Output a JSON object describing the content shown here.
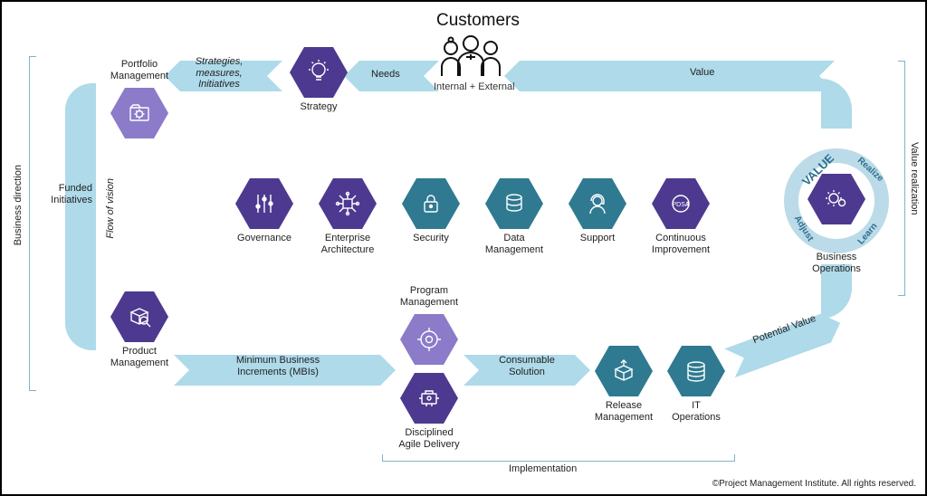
{
  "type": "flowchart",
  "background_color": "#ffffff",
  "arrow_band_color": "#aedaea",
  "value_ring_color": "#bcdbe8",
  "value_ring_text_color": "#2b6f8f",
  "border_color": "#000000",
  "label_fontsize": 11,
  "title_fontsize": 19,
  "copyright": "©Project Management Institute. All rights reserved.",
  "customers": {
    "title": "Customers",
    "subtitle": "Internal + External"
  },
  "hex_palette": {
    "purple": "#4d398f",
    "light_purple": "#8b7bc9",
    "teal": "#2f7a91",
    "dark_teal": "#236073"
  },
  "nodes": {
    "strategy": {
      "label": "Strategy",
      "color": "#4d398f"
    },
    "portfolio_management": {
      "label": "Portfolio\nManagement",
      "color": "#8b7bc9"
    },
    "product_management": {
      "label": "Product\nManagement",
      "color": "#4d398f"
    },
    "program_management": {
      "label": "Program\nManagement",
      "color": "#8b7bc9"
    },
    "disciplined_agile": {
      "label": "Disciplined\nAgile Delivery",
      "color": "#4d398f"
    },
    "release_management": {
      "label": "Release\nManagement",
      "color": "#2f7a91"
    },
    "it_operations": {
      "label": "IT\nOperations",
      "color": "#2f7a91"
    },
    "business_operations": {
      "label": "Business\nOperations",
      "color": "#4d398f"
    },
    "governance": {
      "label": "Governance",
      "color": "#4d398f"
    },
    "enterprise_arch": {
      "label": "Enterprise\nArchitecture",
      "color": "#4d398f"
    },
    "security": {
      "label": "Security",
      "color": "#2f7a91"
    },
    "data_management": {
      "label": "Data\nManagement",
      "color": "#2f7a91"
    },
    "support": {
      "label": "Support",
      "color": "#2f7a91"
    },
    "continuous_improvement": {
      "label": "Continuous\nImprovement",
      "color": "#4d398f"
    }
  },
  "edges": {
    "needs": "Needs",
    "strategies": "Strategies,\nmeasures,\nInitiatives",
    "funded_initiatives": "Funded\nInitiatives",
    "mbi": "Minimum Business\nIncrements (MBIs)",
    "consumable_solution": "Consumable\nSolution",
    "potential_value": "Potential Value",
    "value": "Value"
  },
  "brackets": {
    "business_direction": "Business direction",
    "flow_of_vision": "Flow of vision",
    "implementation": "Implementation",
    "value_realization": "Value realization"
  },
  "value_ring": {
    "center": "VALUE",
    "phases": [
      "Realize",
      "Learn",
      "Adjust"
    ]
  }
}
